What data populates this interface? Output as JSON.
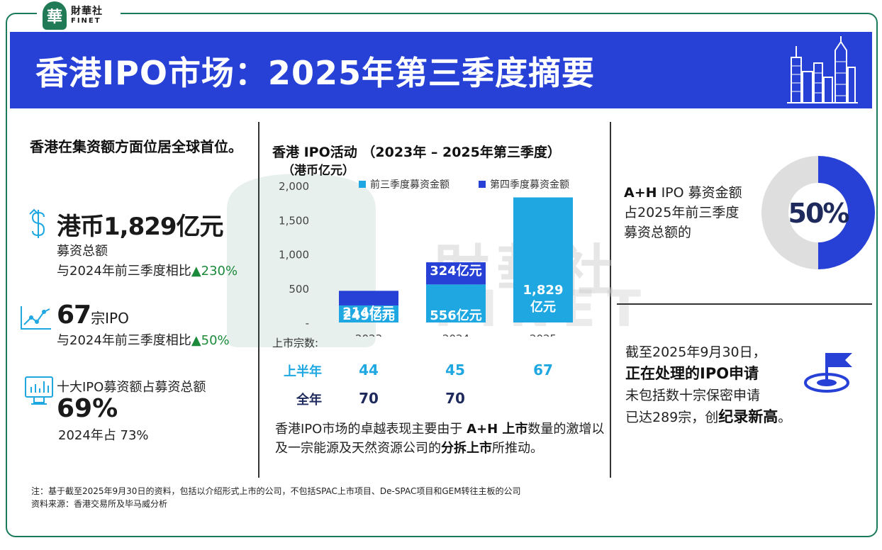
{
  "brand": {
    "cn": "財華社",
    "en": "FINET",
    "seal": "華"
  },
  "banner": {
    "title": "香港IPO市场：2025年第三季度摘要"
  },
  "left": {
    "headline": "香港在集资额方面位居全球首位。",
    "fund": {
      "value": "港币1,829亿元",
      "label": "募资总额",
      "compare": "与2024年前三季度相比",
      "change": "▲230%"
    },
    "ipo": {
      "value": "67",
      "unit": "宗IPO",
      "compare": "与2024年前三季度相比",
      "change": "▲50%"
    },
    "top10": {
      "label": "十大IPO募资额占募资总额",
      "value": "69%",
      "prev": "2024年占 73%"
    }
  },
  "chart_data": {
    "type": "bar",
    "stacked": true,
    "title": "香港 IPO活动 （2023年 – 2025年第三季度）",
    "ylabel": "（港币亿元）",
    "categories": [
      "2023",
      "2024",
      "2025"
    ],
    "ylim": [
      0,
      2000
    ],
    "yticks": [
      "2,000",
      "1,500",
      "1,000",
      "500",
      "-"
    ],
    "legend_position": "top",
    "colors": {
      "q1q3": "#1ea7e1",
      "q4": "#2741d6"
    },
    "series": [
      {
        "name": "前三季度募资金额",
        "values": [
          249,
          556,
          1829
        ],
        "labels": [
          "249亿元",
          "556亿元",
          "1,829\n亿元"
        ]
      },
      {
        "name": "第四季度募资金额",
        "values": [
          214,
          324,
          null
        ],
        "labels": [
          "214亿元",
          "324亿元",
          ""
        ]
      }
    ]
  },
  "table": {
    "row_label": "上市宗数:",
    "rows": [
      {
        "label": "上半年",
        "values": [
          "44",
          "45",
          "67"
        ]
      },
      {
        "label": "全年",
        "values": [
          "70",
          "70",
          ""
        ]
      }
    ]
  },
  "midnote": {
    "p1": "香港IPO市场的卓越表现主要由于 ",
    "b1": "A+H 上市",
    "p2": "数量的激增以及一宗能源及天然资源公司的",
    "b2": "分拆上市",
    "p3": "所推动。"
  },
  "right": {
    "ah_bold": "A+H",
    "ah_line1": " IPO 募资金额",
    "ah_line2": "占2025年前三季度",
    "ah_line3": "募资总额的",
    "donut_value": "50%",
    "donut_fraction": 0.5,
    "pend_line1": "截至2025年9月30日，",
    "pend_bold": "正在处理的IPO申请",
    "pend_line2": "未包括数十宗保密申请",
    "pend_line3": "已达289宗，创",
    "pend_bold2": "纪录新高",
    "pend_end": "。"
  },
  "footnote": {
    "line1": "注：基于截至2025年9月30日的资料，包括以介绍形式上市的公司，不包括SPAC上市项目、De-SPAC项目和GEM转往主板的公司",
    "line2": "资料来源：香港交易所及毕马威分析"
  }
}
